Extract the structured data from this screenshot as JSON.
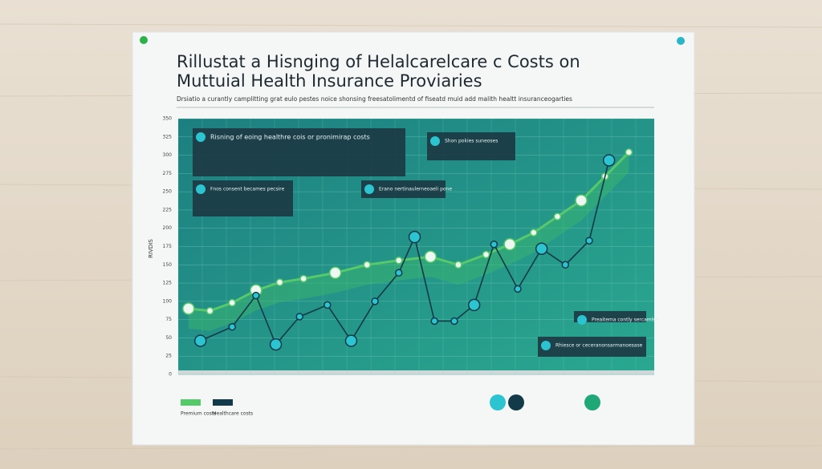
{
  "chart_data": {
    "type": "line",
    "title": "Rillustat a Hisnging of Helalcarelcare c Costs on",
    "subtitle": "Muttuial Health Insurance Proviaries",
    "caption": "Drsiatio a curantly camplitting grat eulo pestes noice shonsing freesatolimentd of fiseatd muid add malith healtt insuranceogarties",
    "y_label": "RIVDIS",
    "annotations": [
      "Risning of eoing healthre cois or pronimirap costs",
      "Fnos consent becames pecsire",
      "Shon pokies suneoses",
      "Erano nertinaulerneoaeli pone",
      "Preaitema contly sercamlse",
      "Rhiesce or ceceranonsarmanoesase"
    ],
    "xlim": [
      0,
      600
    ],
    "ylim": [
      0,
      350
    ],
    "yticks": [
      0,
      25,
      50,
      75,
      100,
      125,
      150,
      175,
      200,
      225,
      250,
      275,
      300,
      325,
      350
    ],
    "grid": true,
    "series": [
      {
        "name": "Premium costs",
        "color": "#57c96b",
        "x": [
          13,
          40,
          68,
          98,
          128,
          158,
          198,
          238,
          278,
          318,
          353,
          388,
          418,
          448,
          478,
          508,
          538,
          568
        ],
        "values": [
          90,
          87,
          98,
          115,
          126,
          131,
          139,
          150,
          156,
          161,
          150,
          164,
          178,
          194,
          216,
          238,
          271,
          304
        ]
      },
      {
        "name": "Healthcare costs",
        "color": "#123a48",
        "x": [
          28,
          68,
          98,
          123,
          153,
          188,
          218,
          248,
          278,
          298,
          323,
          348,
          373,
          398,
          428,
          458,
          488,
          518,
          543
        ],
        "values": [
          46,
          65,
          108,
          41,
          79,
          95,
          46,
          100,
          139,
          188,
          73,
          73,
          95,
          178,
          117,
          172,
          150,
          183,
          293
        ]
      }
    ]
  }
}
